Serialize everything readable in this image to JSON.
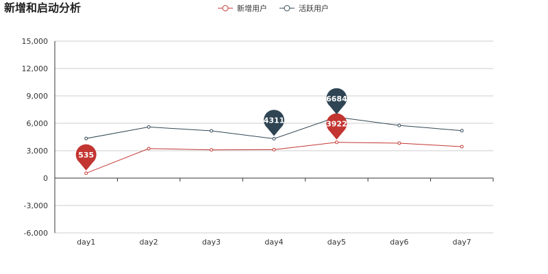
{
  "chart_data": {
    "type": "line",
    "title": "新增和启动分析",
    "categories": [
      "day1",
      "day2",
      "day3",
      "day4",
      "day5",
      "day6",
      "day7"
    ],
    "series": [
      {
        "name": "新增用户",
        "color": "#c23531",
        "values": [
          535,
          3233,
          3097,
          3116,
          3922,
          3825,
          3440
        ],
        "max_point": {
          "index": 4,
          "value": 3922
        },
        "min_point": {
          "index": 0,
          "value": 535
        }
      },
      {
        "name": "活跃用户",
        "color": "#2f4554",
        "values": [
          4337,
          5596,
          5175,
          4311,
          6684,
          5763,
          5196
        ],
        "max_point": {
          "index": 4,
          "value": 6684
        },
        "min_point": {
          "index": 3,
          "value": 4311
        }
      }
    ],
    "ylim": [
      -6000,
      15000
    ],
    "yticks": [
      -6000,
      -3000,
      0,
      3000,
      6000,
      9000,
      12000,
      15000
    ],
    "ytick_labels": [
      "-6,000",
      "-3,000",
      "0",
      "3,000",
      "6,000",
      "9,000",
      "12,000",
      "15,000"
    ],
    "grid": true,
    "legend_position": "top-center",
    "xlabel": "",
    "ylabel": ""
  }
}
